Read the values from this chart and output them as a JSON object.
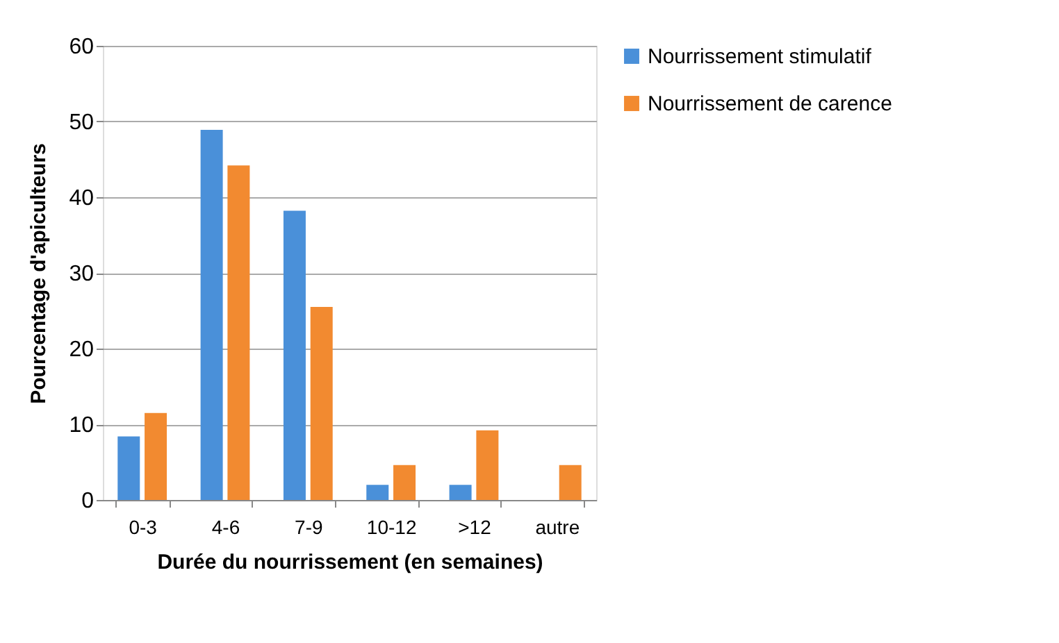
{
  "chart_data": {
    "type": "bar",
    "xlabel": "Durée du nourrissement (en semaines)",
    "ylabel": "Pourcentage d'apiculteurs",
    "categories": [
      "0-3",
      "4-6",
      "7-9",
      "10-12",
      ">12",
      "autre"
    ],
    "series": [
      {
        "name": "Nourrissement stimulatif",
        "color": "#4a90d9",
        "values": [
          8.4,
          48.9,
          38.2,
          2.0,
          2.0,
          null
        ]
      },
      {
        "name": "Nourrissement de carence",
        "color": "#f28a30",
        "values": [
          11.5,
          44.2,
          25.5,
          4.6,
          9.2,
          4.6
        ]
      }
    ],
    "ylim": [
      0,
      60
    ],
    "yticks": [
      0,
      10,
      20,
      30,
      40,
      50,
      60
    ],
    "grid": "y",
    "legend": "right"
  }
}
